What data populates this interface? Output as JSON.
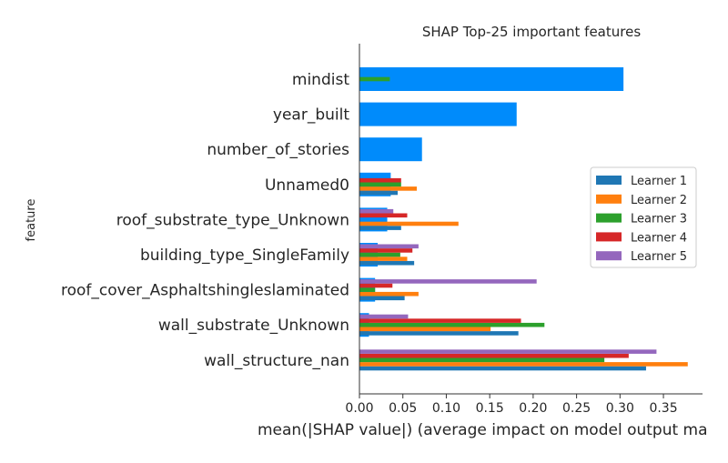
{
  "chart_data": {
    "type": "bar",
    "orientation": "horizontal",
    "title": "SHAP Top-25 important features",
    "xlabel": "mean(|SHAP value|) (average impact on model output ma",
    "ylabel": "feature",
    "xlim": [
      0,
      0.395
    ],
    "xticks": [
      0.0,
      0.05,
      0.1,
      0.15,
      0.2,
      0.25,
      0.3,
      0.35
    ],
    "xtick_labels": [
      "0.00",
      "0.05",
      "0.10",
      "0.15",
      "0.20",
      "0.25",
      "0.30",
      "0.35"
    ],
    "legend_position": "right",
    "categories": [
      "mindist",
      "year_built",
      "number_of_stories",
      "Unnamed0",
      "roof_substrate_type_Unknown",
      "building_type_SingleFamily",
      "roof_cover_Asphaltshingleslaminated",
      "wall_substrate_Unknown",
      "wall_structure_nan"
    ],
    "overall": {
      "color": "#008bfb",
      "values": [
        0.304,
        0.181,
        0.072,
        0.036,
        0.032,
        0.021,
        0.018,
        0.011,
        null
      ]
    },
    "series": [
      {
        "name": "Learner 1",
        "color": "#1f77b4",
        "values": [
          null,
          null,
          null,
          0.044,
          0.048,
          0.063,
          0.052,
          0.183,
          0.33
        ]
      },
      {
        "name": "Learner 2",
        "color": "#ff7f0e",
        "values": [
          null,
          null,
          null,
          0.066,
          0.114,
          0.055,
          0.068,
          0.151,
          0.378
        ]
      },
      {
        "name": "Learner 3",
        "color": "#2ca02c",
        "values": [
          0.035,
          null,
          null,
          0.048,
          0.0,
          0.047,
          0.018,
          0.213,
          0.282
        ]
      },
      {
        "name": "Learner 4",
        "color": "#d62728",
        "values": [
          null,
          null,
          null,
          0.048,
          0.055,
          0.061,
          0.038,
          0.186,
          0.31
        ]
      },
      {
        "name": "Learner 5",
        "color": "#9467bd",
        "values": [
          null,
          null,
          null,
          0.0,
          0.039,
          0.068,
          0.204,
          0.056,
          0.342
        ]
      }
    ]
  }
}
